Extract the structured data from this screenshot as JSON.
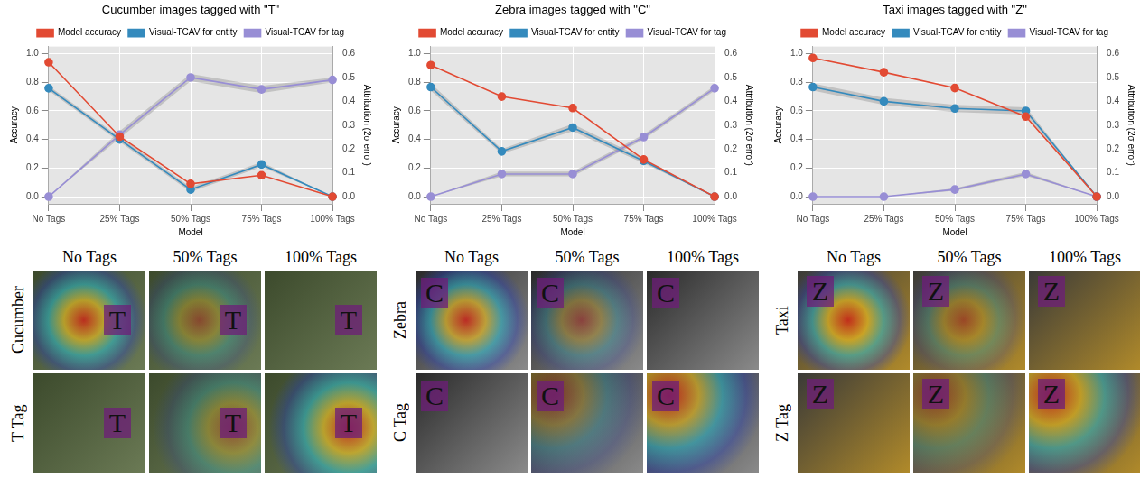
{
  "chart_data": [
    {
      "type": "line",
      "title": "Cucumber images tagged with \"T\"",
      "x_label": "Model",
      "y_label": "Accuracy",
      "y2_label": "Attribution (2σ error)",
      "categories": [
        "No Tags",
        "25% Tags",
        "50% Tags",
        "75% Tags",
        "100% Tags"
      ],
      "ylim": [
        -0.05,
        1.05
      ],
      "yticks": [
        {
          "value": 0,
          "label": "0.0"
        },
        0.2,
        0.4,
        0.6,
        0.8,
        {
          "value": 1,
          "label": "1.0"
        }
      ],
      "y2lim": [
        -0.03,
        0.63
      ],
      "y2ticks": [
        {
          "value": 0,
          "label": "0.0"
        },
        0.1,
        0.2,
        0.3,
        0.4,
        0.5,
        0.6
      ],
      "grid": true,
      "legend": "top",
      "series": [
        {
          "name": "Model accuracy",
          "color": "#e24a33",
          "marker": "circle",
          "line_style": "solid",
          "values": [
            0.94,
            0.42,
            0.09,
            0.15,
            0.0
          ]
        },
        {
          "name": "Visual-TCAV for entity",
          "color": "#348abd",
          "marker": "circle",
          "line_style": "solid",
          "axis": "y2",
          "values": [
            0.455,
            0.24,
            0.03,
            0.135,
            0.0
          ],
          "error": [
            0.01,
            0.01,
            0.01,
            0.01,
            0.0
          ]
        },
        {
          "name": "Visual-TCAV for tag",
          "color": "#988ed5",
          "marker": "circle",
          "line_style": "solid",
          "axis": "y2",
          "values": [
            0.0,
            0.26,
            0.5,
            0.45,
            0.49
          ],
          "error": [
            0.0,
            0.015,
            0.015,
            0.015,
            0.01
          ]
        }
      ]
    },
    {
      "type": "line",
      "title": "Zebra images tagged with \"C\"",
      "x_label": "Model",
      "y_label": "Accuracy",
      "y2_label": "Attribution (2σ error)",
      "categories": [
        "No Tags",
        "25% Tags",
        "50% Tags",
        "75% Tags",
        "100% Tags"
      ],
      "ylim": [
        -0.05,
        1.05
      ],
      "yticks": [
        {
          "value": 0,
          "label": "0.0"
        },
        0.2,
        0.4,
        0.6,
        0.8,
        {
          "value": 1,
          "label": "1.0"
        }
      ],
      "y2lim": [
        -0.03,
        0.63
      ],
      "y2ticks": [
        {
          "value": 0,
          "label": "0.0"
        },
        0.1,
        0.2,
        0.3,
        0.4,
        0.5,
        0.6
      ],
      "grid": true,
      "legend": "top",
      "series": [
        {
          "name": "Model accuracy",
          "color": "#e24a33",
          "marker": "circle",
          "line_style": "solid",
          "values": [
            0.92,
            0.7,
            0.62,
            0.26,
            0.0
          ]
        },
        {
          "name": "Visual-TCAV for entity",
          "color": "#348abd",
          "marker": "circle",
          "line_style": "solid",
          "axis": "y2",
          "values": [
            0.46,
            0.19,
            0.29,
            0.15,
            0.0
          ],
          "error": [
            0.015,
            0.01,
            0.015,
            0.01,
            0.0
          ]
        },
        {
          "name": "Visual-TCAV for tag",
          "color": "#988ed5",
          "marker": "circle",
          "line_style": "solid",
          "axis": "y2",
          "values": [
            0.0,
            0.095,
            0.095,
            0.25,
            0.455
          ],
          "error": [
            0.0,
            0.01,
            0.01,
            0.01,
            0.01
          ]
        }
      ]
    },
    {
      "type": "line",
      "title": "Taxi images tagged with \"Z\"",
      "x_label": "Model",
      "y_label": "Accuracy",
      "y2_label": "Attribution (2σ error)",
      "categories": [
        "No Tags",
        "25% Tags",
        "50% Tags",
        "75% Tags",
        "100% Tags"
      ],
      "ylim": [
        -0.05,
        1.05
      ],
      "yticks": [
        {
          "value": 0,
          "label": "0.0"
        },
        0.2,
        0.4,
        0.6,
        0.8,
        {
          "value": 1,
          "label": "1.0"
        }
      ],
      "y2lim": [
        -0.03,
        0.63
      ],
      "y2ticks": [
        {
          "value": 0,
          "label": "0.0"
        },
        0.1,
        0.2,
        0.3,
        0.4,
        0.5,
        0.6
      ],
      "grid": true,
      "legend": "top",
      "series": [
        {
          "name": "Model accuracy",
          "color": "#e24a33",
          "marker": "circle",
          "line_style": "solid",
          "values": [
            0.97,
            0.87,
            0.76,
            0.56,
            0.0
          ]
        },
        {
          "name": "Visual-TCAV for entity",
          "color": "#348abd",
          "marker": "circle",
          "line_style": "solid",
          "axis": "y2",
          "values": [
            0.46,
            0.4,
            0.37,
            0.36,
            0.0
          ],
          "error": [
            0.015,
            0.015,
            0.015,
            0.015,
            0.0
          ]
        },
        {
          "name": "Visual-TCAV for tag",
          "color": "#988ed5",
          "marker": "circle",
          "line_style": "solid",
          "axis": "y2",
          "values": [
            0.0,
            0.0,
            0.03,
            0.095,
            0.0
          ],
          "error": [
            0.0,
            0.0,
            0.005,
            0.008,
            0.0
          ]
        }
      ]
    }
  ],
  "image_panels": [
    {
      "columns": [
        "No Tags",
        "50% Tags",
        "100% Tags"
      ],
      "rows": [
        "Cucumber",
        "T Tag"
      ],
      "tag": "T"
    },
    {
      "columns": [
        "No Tags",
        "50% Tags",
        "100% Tags"
      ],
      "rows": [
        "Zebra",
        "C Tag"
      ],
      "tag": "C"
    },
    {
      "columns": [
        "No Tags",
        "50% Tags",
        "100% Tags"
      ],
      "rows": [
        "Taxi",
        "Z Tag"
      ],
      "tag": "Z"
    }
  ]
}
